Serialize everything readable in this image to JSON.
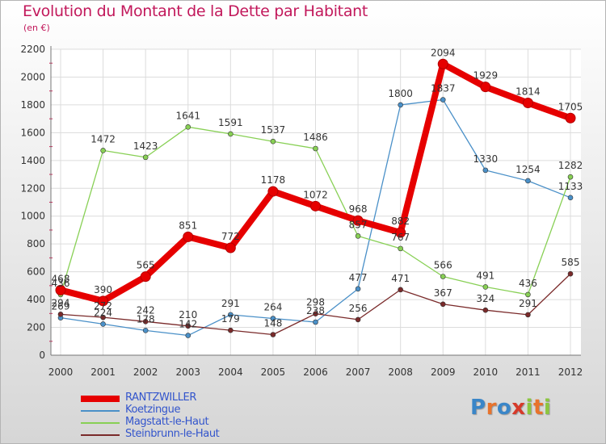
{
  "header": {
    "title": "Evolution du Montant de la Dette par Habitant",
    "unit": "(en €)"
  },
  "logo": {
    "text": "Proxiti",
    "letters": [
      "P",
      "r",
      "o",
      "x",
      "i",
      "t",
      "i"
    ],
    "colors": [
      "#3a86c8",
      "#e8732c",
      "#3a86c8",
      "#d63a2a",
      "#8cc63f",
      "#e8732c",
      "#8cc63f"
    ]
  },
  "chart_data": {
    "type": "line",
    "title": "Evolution du Montant de la Dette par Habitant",
    "subtitle": "(en €)",
    "xlabel": "",
    "ylabel": "",
    "ylim": [
      0,
      2200
    ],
    "yticks": [
      0,
      200,
      400,
      600,
      800,
      1000,
      1200,
      1400,
      1600,
      1800,
      2000,
      2200
    ],
    "grid": true,
    "legend_position": "bottom-left",
    "x": [
      "2000",
      "2001",
      "2002",
      "2003",
      "2004",
      "2005",
      "2006",
      "2007",
      "2008",
      "2009",
      "2010",
      "2011",
      "2012"
    ],
    "series": [
      {
        "name": "RANTZWILLER",
        "color": "#e60000",
        "values": [
          468,
          390,
          565,
          851,
          772,
          1178,
          1072,
          968,
          882,
          2094,
          1929,
          1814,
          1705
        ],
        "labels": [
          "468",
          "390",
          "565",
          "851",
          "772",
          "1178",
          "1072",
          "968",
          "882",
          "2094",
          "1929",
          "1814",
          "1705"
        ]
      },
      {
        "name": "Koetzingue",
        "color": "#4a90c8",
        "values": [
          269,
          224,
          178,
          142,
          291,
          264,
          238,
          477,
          1800,
          1837,
          1330,
          1254,
          1133
        ],
        "labels": [
          "269",
          "224",
          "178",
          "142",
          "291",
          "264",
          "238",
          "477",
          "1800",
          "1837",
          "1330",
          "1254",
          "1133"
        ]
      },
      {
        "name": "Magstatt-le-Haut",
        "color": "#88d055",
        "values": [
          436,
          1472,
          1423,
          1641,
          1591,
          1537,
          1486,
          857,
          767,
          566,
          491,
          436,
          1282
        ],
        "labels": [
          "436",
          "1472",
          "1423",
          "1641",
          "1591",
          "1537",
          "1486",
          "857",
          "767",
          "566",
          "491",
          "436",
          "1282"
        ]
      },
      {
        "name": "Steinbrunn-le-Haut",
        "color": "#7a2a2a",
        "values": [
          294,
          272,
          242,
          210,
          179,
          148,
          298,
          256,
          471,
          367,
          324,
          291,
          585
        ],
        "labels": [
          "294",
          "272",
          "242",
          "210",
          "179",
          "148",
          "298",
          "256",
          "471",
          "367",
          "324",
          "291",
          "585"
        ]
      }
    ]
  }
}
